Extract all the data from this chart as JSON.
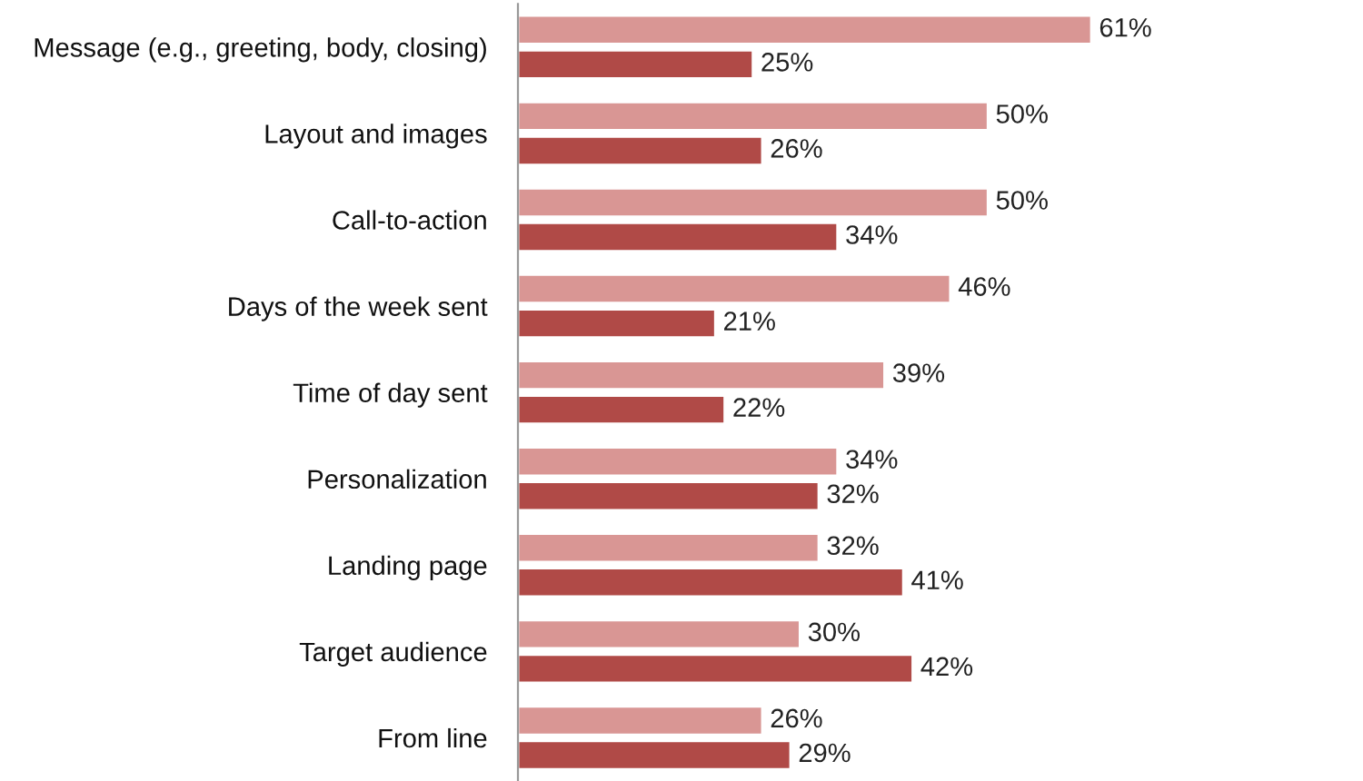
{
  "chart_data": {
    "type": "bar",
    "orientation": "horizontal",
    "categories": [
      "Message (e.g., greeting, body, closing)",
      "Layout and images",
      "Call-to-action",
      "Days of the week sent",
      "Time of day sent",
      "Personalization",
      "Landing page",
      "Target audience",
      "From line"
    ],
    "series": [
      {
        "color": "#d99694",
        "values": [
          61,
          50,
          50,
          46,
          39,
          34,
          32,
          30,
          26
        ],
        "value_labels": [
          "61%",
          "50%",
          "50%",
          "46%",
          "39%",
          "34%",
          "32%",
          "30%",
          "26%"
        ]
      },
      {
        "color": "#b04a47",
        "values": [
          25,
          26,
          34,
          21,
          22,
          32,
          41,
          42,
          29
        ],
        "value_labels": [
          "25%",
          "26%",
          "34%",
          "21%",
          "22%",
          "32%",
          "41%",
          "42%",
          "29%"
        ]
      }
    ],
    "tick_labels": "y",
    "grid": false,
    "legend": false
  }
}
